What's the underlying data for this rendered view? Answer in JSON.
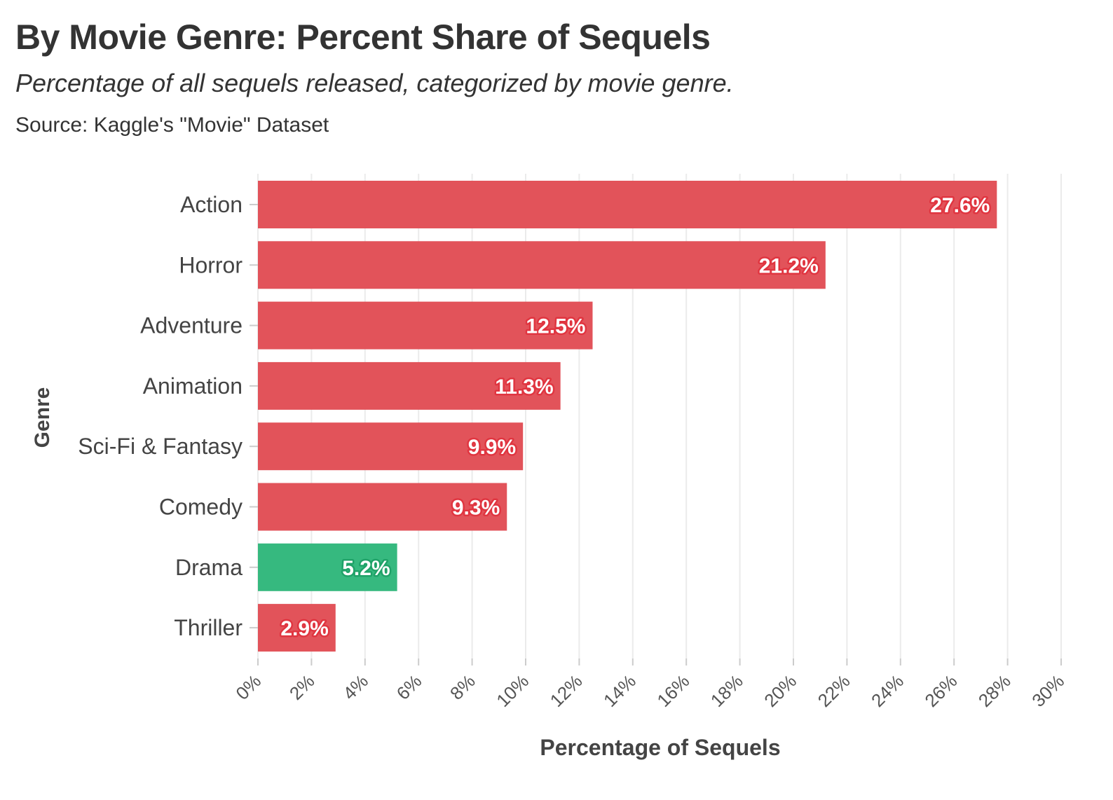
{
  "title": "By Movie Genre: Percent Share of Sequels",
  "subtitle": "Percentage of all sequels released, categorized by movie genre.",
  "caption": "Source: Kaggle's \"Movie\" Dataset",
  "chart_data": {
    "type": "bar",
    "orientation": "horizontal",
    "categories": [
      "Action",
      "Horror",
      "Adventure",
      "Animation",
      "Sci-Fi & Fantasy",
      "Comedy",
      "Drama",
      "Thriller"
    ],
    "values": [
      27.6,
      21.2,
      12.5,
      11.3,
      9.9,
      9.3,
      5.2,
      2.9
    ],
    "data_labels": [
      "27.6%",
      "21.2%",
      "12.5%",
      "11.3%",
      "9.9%",
      "9.3%",
      "5.2%",
      "2.9%"
    ],
    "highlight": "Drama",
    "colors": {
      "default": "#E2535A",
      "highlight": "#36B97F",
      "label_outline_default": "#E03540",
      "label_outline_highlight": "#1FA268",
      "grid": "#EBEBEB"
    },
    "xlabel": "Percentage of Sequels",
    "ylabel": "Genre",
    "xlim": [
      0,
      30
    ],
    "xticks": [
      0,
      2,
      4,
      6,
      8,
      10,
      12,
      14,
      16,
      18,
      20,
      22,
      24,
      26,
      28,
      30
    ],
    "xtick_labels": [
      "0%",
      "2%",
      "4%",
      "6%",
      "8%",
      "10%",
      "12%",
      "14%",
      "16%",
      "18%",
      "20%",
      "22%",
      "24%",
      "26%",
      "28%",
      "30%"
    ],
    "grid": true,
    "legend": "none"
  }
}
